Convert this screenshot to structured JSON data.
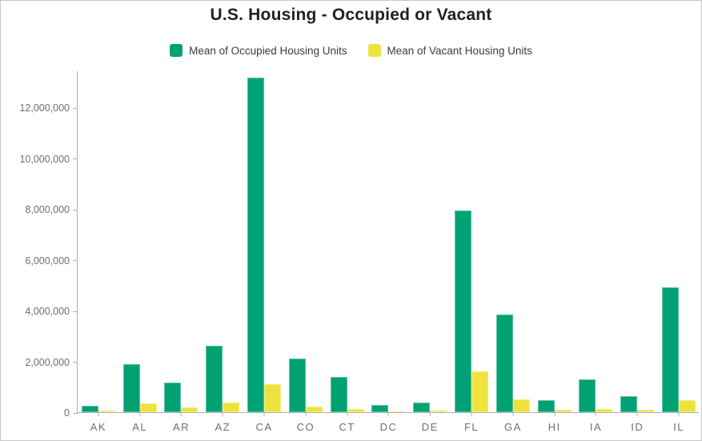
{
  "title": "U.S. Housing - Occupied or Vacant",
  "legend": {
    "items": [
      {
        "label": "Mean of Occupied Housing Units",
        "color": "#00a273"
      },
      {
        "label": "Mean of Vacant Housing Units",
        "color": "#eee23d"
      }
    ]
  },
  "colors": {
    "occupied": "#00a273",
    "vacant": "#eee23d",
    "axis": "#b0b0b0",
    "tick_label": "#6e6e6e",
    "title_text": "#212121",
    "legend_text": "#3c3c3c",
    "border": "#c8c8c8",
    "background": "#ffffff"
  },
  "chart_data": {
    "type": "bar",
    "title": "U.S. Housing - Occupied or Vacant",
    "xlabel": "",
    "ylabel": "",
    "categories": [
      "AK",
      "AL",
      "AR",
      "AZ",
      "CA",
      "CO",
      "CT",
      "DC",
      "DE",
      "FL",
      "GA",
      "HI",
      "IA",
      "ID",
      "IL"
    ],
    "series": [
      {
        "name": "Mean of Occupied Housing Units",
        "color": "#00a273",
        "values": [
          240000,
          1880000,
          1150000,
          2630000,
          13180000,
          2100000,
          1380000,
          290000,
          380000,
          7950000,
          3840000,
          465000,
          1280000,
          640000,
          4900000
        ]
      },
      {
        "name": "Mean of Vacant Housing Units",
        "color": "#eee23d",
        "values": [
          55000,
          350000,
          175000,
          390000,
          1090000,
          215000,
          125000,
          30000,
          55000,
          1620000,
          490000,
          90000,
          140000,
          90000,
          480000
        ]
      }
    ],
    "ylim": [
      0,
      13450000
    ],
    "yticks": [
      0,
      2000000,
      4000000,
      6000000,
      8000000,
      10000000,
      12000000
    ],
    "grid": false,
    "legend_position": "top"
  }
}
